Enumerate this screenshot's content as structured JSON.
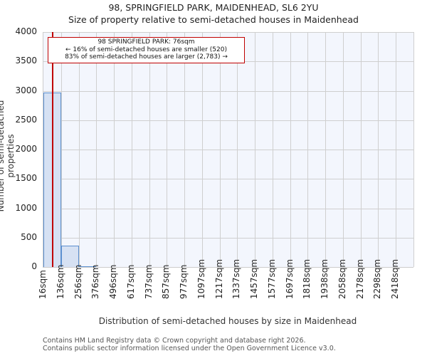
{
  "chart_data": {
    "type": "bar",
    "title": "98, SPRINGFIELD PARK, MAIDENHEAD, SL6 2YU",
    "subtitle": "Size of property relative to semi-detached houses in Maidenhead",
    "xlabel": "Distribution of semi-detached houses by size in Maidenhead",
    "ylabel": "Number of semi-detached properties",
    "categories": [
      "16sqm",
      "136sqm",
      "256sqm",
      "376sqm",
      "496sqm",
      "617sqm",
      "737sqm",
      "857sqm",
      "977sqm",
      "1097sqm",
      "1217sqm",
      "1337sqm",
      "1457sqm",
      "1577sqm",
      "1697sqm",
      "1818sqm",
      "1938sqm",
      "2058sqm",
      "2178sqm",
      "2298sqm",
      "2418sqm"
    ],
    "values": [
      2970,
      360,
      15,
      0,
      0,
      0,
      0,
      0,
      0,
      0,
      0,
      0,
      0,
      0,
      0,
      0,
      0,
      0,
      0,
      0,
      0
    ],
    "ylim": [
      0,
      4000
    ],
    "yticks": [
      0,
      500,
      1000,
      1500,
      2000,
      2500,
      3000,
      3500,
      4000
    ],
    "grid": true,
    "marker": {
      "value_sqm": 76,
      "color": "#c00000"
    },
    "annotation": [
      "98 SPRINGFIELD PARK: 76sqm",
      "← 16% of semi-detached houses are smaller (520)",
      "83% of semi-detached houses are larger (2,783) →"
    ],
    "bar_color": "#d6e1f3",
    "bar_edge_color": "#5b8fcf"
  },
  "footer": [
    "Contains HM Land Registry data © Crown copyright and database right 2026.",
    "Contains public sector information licensed under the Open Government Licence v3.0."
  ]
}
